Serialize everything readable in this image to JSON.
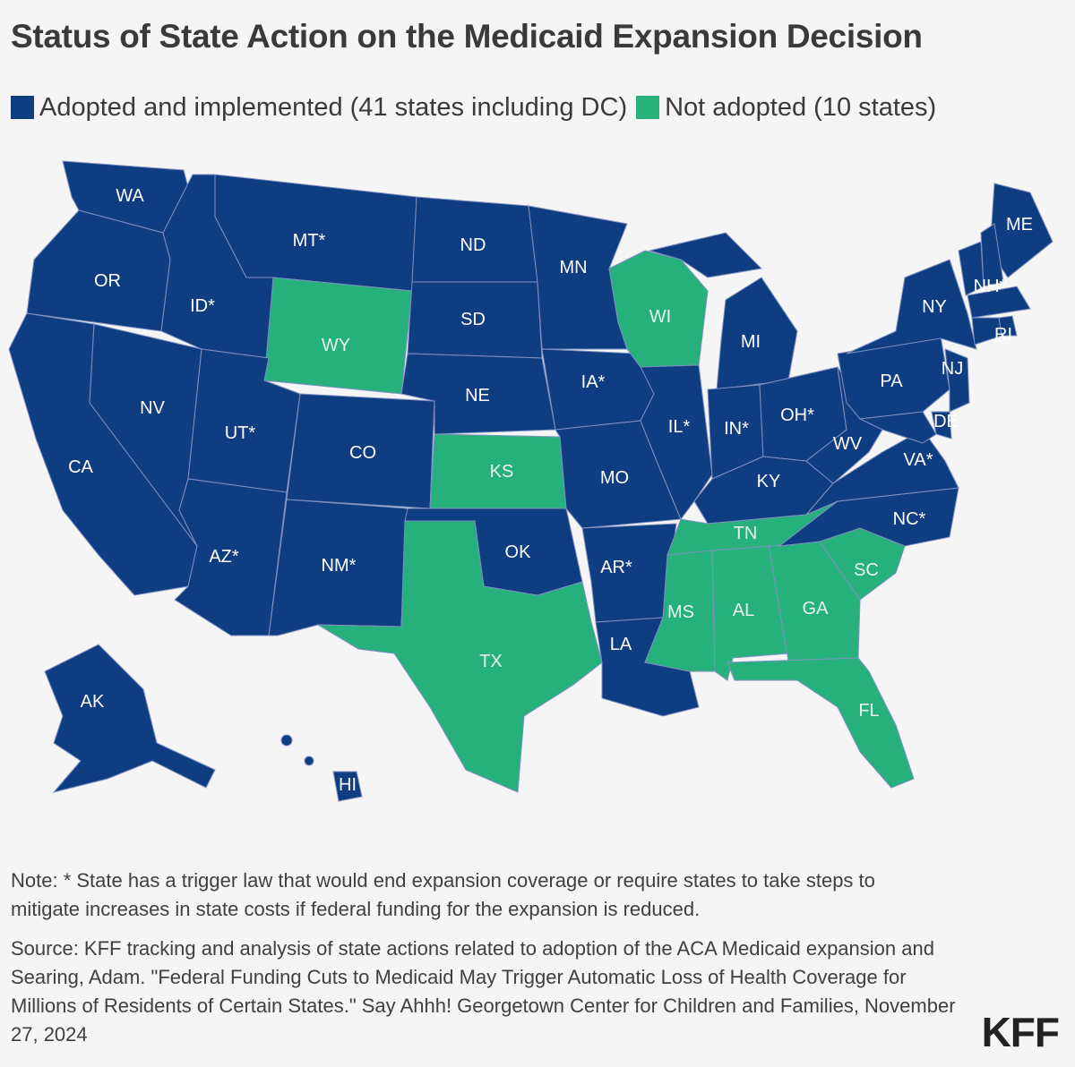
{
  "title": "Status of State Action on the Medicaid Expansion Decision",
  "legend": [
    {
      "label": "Adopted and implemented (41 states including DC)",
      "color": "#0f3d82"
    },
    {
      "label": "Not adopted (10 states)",
      "color": "#25b07c"
    }
  ],
  "colors": {
    "adopted": "#0f3d82",
    "not_adopted": "#25b07c",
    "border": "#8a98c8"
  },
  "states": {
    "WA": {
      "label": "WA",
      "status": "adopted"
    },
    "OR": {
      "label": "OR",
      "status": "adopted"
    },
    "CA": {
      "label": "CA",
      "status": "adopted"
    },
    "NV": {
      "label": "NV",
      "status": "adopted"
    },
    "ID": {
      "label": "ID*",
      "status": "adopted"
    },
    "MT": {
      "label": "MT*",
      "status": "adopted"
    },
    "WY": {
      "label": "WY",
      "status": "not_adopted"
    },
    "UT": {
      "label": "UT*",
      "status": "adopted"
    },
    "CO": {
      "label": "CO",
      "status": "adopted"
    },
    "AZ": {
      "label": "AZ*",
      "status": "adopted"
    },
    "NM": {
      "label": "NM*",
      "status": "adopted"
    },
    "ND": {
      "label": "ND",
      "status": "adopted"
    },
    "SD": {
      "label": "SD",
      "status": "adopted"
    },
    "NE": {
      "label": "NE",
      "status": "adopted"
    },
    "KS": {
      "label": "KS",
      "status": "not_adopted"
    },
    "OK": {
      "label": "OK",
      "status": "adopted"
    },
    "TX": {
      "label": "TX",
      "status": "not_adopted"
    },
    "MN": {
      "label": "MN",
      "status": "adopted"
    },
    "IA": {
      "label": "IA*",
      "status": "adopted"
    },
    "MO": {
      "label": "MO",
      "status": "adopted"
    },
    "AR": {
      "label": "AR*",
      "status": "adopted"
    },
    "LA": {
      "label": "LA",
      "status": "adopted"
    },
    "WI": {
      "label": "WI",
      "status": "not_adopted"
    },
    "IL": {
      "label": "IL*",
      "status": "adopted"
    },
    "MI": {
      "label": "MI",
      "status": "adopted"
    },
    "IN": {
      "label": "IN*",
      "status": "adopted"
    },
    "OH": {
      "label": "OH*",
      "status": "adopted"
    },
    "KY": {
      "label": "KY",
      "status": "adopted"
    },
    "TN": {
      "label": "TN",
      "status": "not_adopted"
    },
    "MS": {
      "label": "MS",
      "status": "not_adopted"
    },
    "AL": {
      "label": "AL",
      "status": "not_adopted"
    },
    "GA": {
      "label": "GA",
      "status": "not_adopted"
    },
    "FL": {
      "label": "FL",
      "status": "not_adopted"
    },
    "SC": {
      "label": "SC",
      "status": "not_adopted"
    },
    "NC": {
      "label": "NC*",
      "status": "adopted"
    },
    "VA": {
      "label": "VA*",
      "status": "adopted"
    },
    "WV": {
      "label": "WV",
      "status": "adopted"
    },
    "PA": {
      "label": "PA",
      "status": "adopted"
    },
    "NY": {
      "label": "NY",
      "status": "adopted"
    },
    "NJ": {
      "label": "NJ",
      "status": "adopted"
    },
    "DE": {
      "label": "DE",
      "status": "adopted"
    },
    "ME": {
      "label": "ME",
      "status": "adopted"
    },
    "NH": {
      "label": "NH*",
      "status": "adopted"
    },
    "RI": {
      "label": "RI",
      "status": "adopted"
    },
    "AK": {
      "label": "AK",
      "status": "adopted"
    },
    "HI": {
      "label": "HI",
      "status": "adopted"
    }
  },
  "note": "Note: * State has a trigger law that would end expansion coverage or require states to take steps to mitigate increases in state costs if federal funding for the expansion is reduced.",
  "source": "Source: KFF tracking and analysis of state actions related to adoption of the ACA Medicaid expansion and Searing, Adam. \"Federal Funding Cuts to Medicaid May Trigger Automatic Loss of Health Coverage for Millions of Residents of Certain States.\" Say Ahhh! Georgetown Center for Children and Families, November 27, 2024",
  "logo": "KFF"
}
